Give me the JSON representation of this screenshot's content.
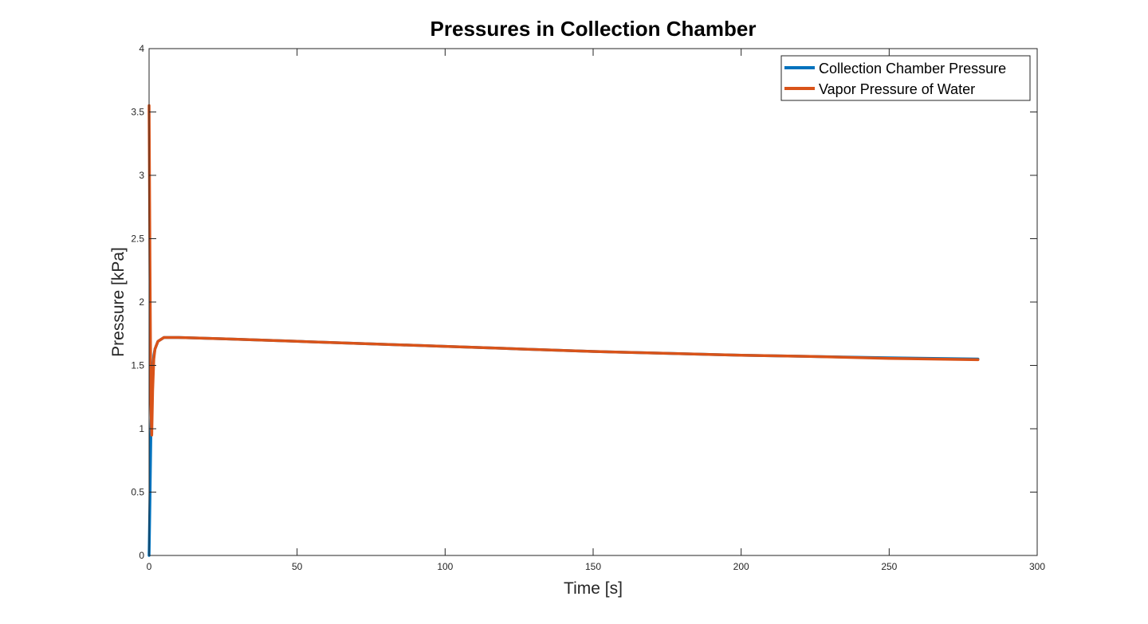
{
  "chart_data": {
    "type": "line",
    "title": "Pressures in Collection Chamber",
    "xlabel": "Time [s]",
    "ylabel": "Pressure [kPa]",
    "xlim": [
      0,
      300
    ],
    "ylim": [
      0,
      4
    ],
    "xticks": [
      0,
      50,
      100,
      150,
      200,
      250,
      300
    ],
    "yticks": [
      0,
      0.5,
      1,
      1.5,
      2,
      2.5,
      3,
      3.5,
      4
    ],
    "grid": false,
    "legend_position": "top-right",
    "series": [
      {
        "name": "Collection Chamber Pressure",
        "color": "#0072BD",
        "x": [
          0,
          0.3,
          0.6,
          0.9,
          1.2,
          1.6,
          2.0,
          3.0,
          5.0,
          10,
          25,
          50,
          75,
          100,
          125,
          150,
          175,
          200,
          225,
          250,
          280
        ],
        "y": [
          0,
          0.45,
          0.95,
          1.25,
          1.45,
          1.58,
          1.63,
          1.69,
          1.72,
          1.72,
          1.71,
          1.69,
          1.67,
          1.65,
          1.63,
          1.61,
          1.595,
          1.58,
          1.57,
          1.56,
          1.55
        ]
      },
      {
        "name": "Vapor Pressure of Water",
        "color": "#D95319",
        "x": [
          0,
          0.3,
          0.6,
          0.9,
          1.2,
          1.6,
          2.0,
          3.0,
          5.0,
          10,
          25,
          50,
          75,
          100,
          125,
          150,
          175,
          200,
          225,
          250,
          280
        ],
        "y": [
          3.55,
          2.3,
          1.2,
          0.95,
          1.3,
          1.55,
          1.63,
          1.69,
          1.72,
          1.72,
          1.71,
          1.69,
          1.67,
          1.65,
          1.63,
          1.61,
          1.595,
          1.58,
          1.57,
          1.555,
          1.545
        ]
      }
    ]
  }
}
